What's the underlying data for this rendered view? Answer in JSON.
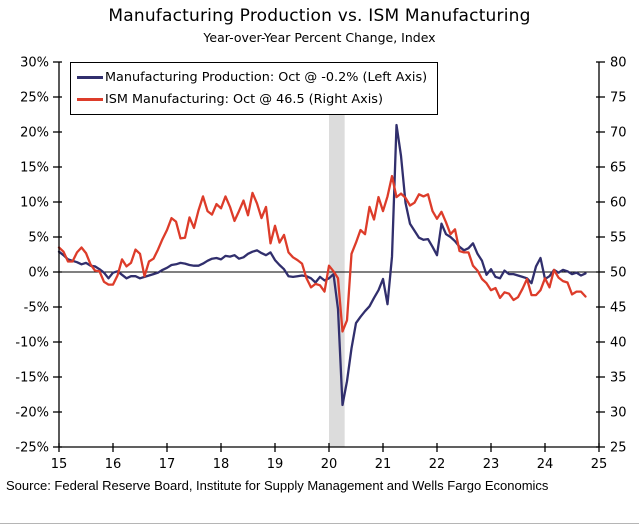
{
  "header": {
    "title": "Manufacturing Production vs. ISM Manufacturing",
    "subtitle": "Year-over-Year Percent Change, Index"
  },
  "legend": [
    {
      "label": "Manufacturing Production: Oct @ -0.2% (Left Axis)",
      "color": "#312f6d"
    },
    {
      "label": "ISM Manufacturing: Oct @ 46.5 (Right Axis)",
      "color": "#dd3c2a"
    }
  ],
  "footer": {
    "source": "Source: Federal Reserve Board, Institute for Supply Management and Wells Fargo Economics"
  },
  "chart_data": {
    "type": "line",
    "title": "Manufacturing Production vs. ISM Manufacturing",
    "subtitle": "Year-over-Year Percent Change, Index",
    "x_min": 2015,
    "x_max": 2025,
    "x_step_months": 1,
    "x_ticks": [
      "15",
      "16",
      "17",
      "18",
      "19",
      "20",
      "21",
      "22",
      "23",
      "24",
      "25"
    ],
    "left_axis": {
      "min": -25,
      "max": 30,
      "ticks": [
        "30%",
        "25%",
        "20%",
        "15%",
        "10%",
        "5%",
        "0%",
        "-5%",
        "-10%",
        "-15%",
        "-20%",
        "-25%"
      ]
    },
    "right_axis": {
      "min": 25,
      "max": 80,
      "ticks": [
        "80",
        "75",
        "70",
        "65",
        "60",
        "55",
        "50",
        "45",
        "40",
        "35",
        "30",
        "25"
      ]
    },
    "grid": false,
    "legend_position": "top-left",
    "recession_band": {
      "x_from": 2020.0,
      "x_to": 2020.29,
      "color": "#dcdcdc"
    },
    "zero_line_left_value": 0,
    "series": [
      {
        "name": "Manufacturing Production (YoY %, Left Axis)",
        "axis": "left",
        "color": "#312f6d",
        "latest_label": "Oct @ -0.2%",
        "values": [
          2.9,
          2.4,
          1.8,
          1.6,
          1.4,
          1.1,
          1.3,
          0.9,
          0.8,
          0.4,
          -0.1,
          -0.9,
          -0.1,
          0.1,
          -0.4,
          -0.9,
          -0.6,
          -0.6,
          -0.9,
          -0.7,
          -0.5,
          -0.3,
          -0.1,
          0.3,
          0.6,
          1.0,
          1.1,
          1.3,
          1.2,
          1.0,
          0.9,
          0.9,
          1.2,
          1.6,
          1.9,
          2.0,
          1.8,
          2.3,
          2.2,
          2.4,
          1.9,
          2.1,
          2.6,
          2.9,
          3.1,
          2.7,
          2.4,
          2.8,
          1.7,
          1.0,
          0.4,
          -0.6,
          -0.7,
          -0.6,
          -0.5,
          -0.6,
          -0.9,
          -1.5,
          -0.7,
          -1.2,
          -0.9,
          -0.3,
          -5.3,
          -19.0,
          -15.6,
          -10.9,
          -7.3,
          -6.4,
          -5.6,
          -4.9,
          -3.7,
          -2.6,
          -1.0,
          -4.6,
          2.2,
          21.0,
          16.6,
          9.9,
          6.9,
          5.9,
          4.9,
          4.6,
          4.7,
          3.6,
          2.4,
          6.9,
          5.4,
          5.0,
          4.4,
          3.6,
          3.1,
          3.4,
          4.1,
          2.6,
          1.6,
          -0.4,
          0.4,
          -0.7,
          -0.9,
          0.2,
          -0.3,
          -0.3,
          -0.5,
          -0.7,
          -0.9,
          -1.6,
          0.8,
          2.0,
          -1.0,
          -0.6,
          0.3,
          -0.1,
          0.3,
          0.1,
          -0.3,
          -0.1,
          -0.5,
          -0.2
        ]
      },
      {
        "name": "ISM Manufacturing (Index, Right Axis)",
        "axis": "right",
        "color": "#dd3c2a",
        "latest_label": "Oct @ 46.5",
        "values": [
          53.5,
          52.9,
          51.5,
          51.5,
          52.8,
          53.5,
          52.7,
          51.1,
          50.2,
          50.1,
          48.6,
          48.2,
          48.2,
          49.5,
          51.8,
          50.8,
          51.3,
          53.2,
          52.6,
          49.4,
          51.5,
          51.9,
          53.2,
          54.7,
          56.0,
          57.7,
          57.2,
          54.8,
          54.9,
          57.8,
          56.3,
          58.8,
          60.8,
          58.7,
          58.2,
          59.7,
          59.1,
          60.8,
          59.3,
          57.3,
          58.7,
          60.2,
          58.1,
          61.3,
          59.8,
          57.7,
          59.3,
          54.1,
          56.6,
          54.2,
          55.3,
          52.8,
          52.1,
          51.7,
          51.2,
          49.1,
          47.8,
          48.3,
          48.1,
          47.2,
          50.9,
          50.1,
          49.1,
          41.5,
          43.1,
          52.6,
          54.2,
          56.0,
          55.4,
          59.3,
          57.5,
          60.7,
          58.7,
          60.8,
          63.7,
          60.7,
          61.2,
          60.6,
          59.5,
          59.9,
          61.1,
          60.8,
          61.1,
          58.7,
          57.6,
          58.6,
          57.1,
          55.4,
          56.1,
          53.0,
          52.8,
          52.8,
          50.9,
          50.2,
          49.0,
          48.4,
          47.4,
          47.7,
          46.3,
          47.1,
          46.9,
          46.0,
          46.4,
          47.6,
          49.0,
          46.7,
          46.7,
          47.4,
          49.1,
          47.8,
          50.3,
          49.2,
          48.7,
          48.5,
          46.8,
          47.2,
          47.2,
          46.5
        ]
      }
    ]
  }
}
